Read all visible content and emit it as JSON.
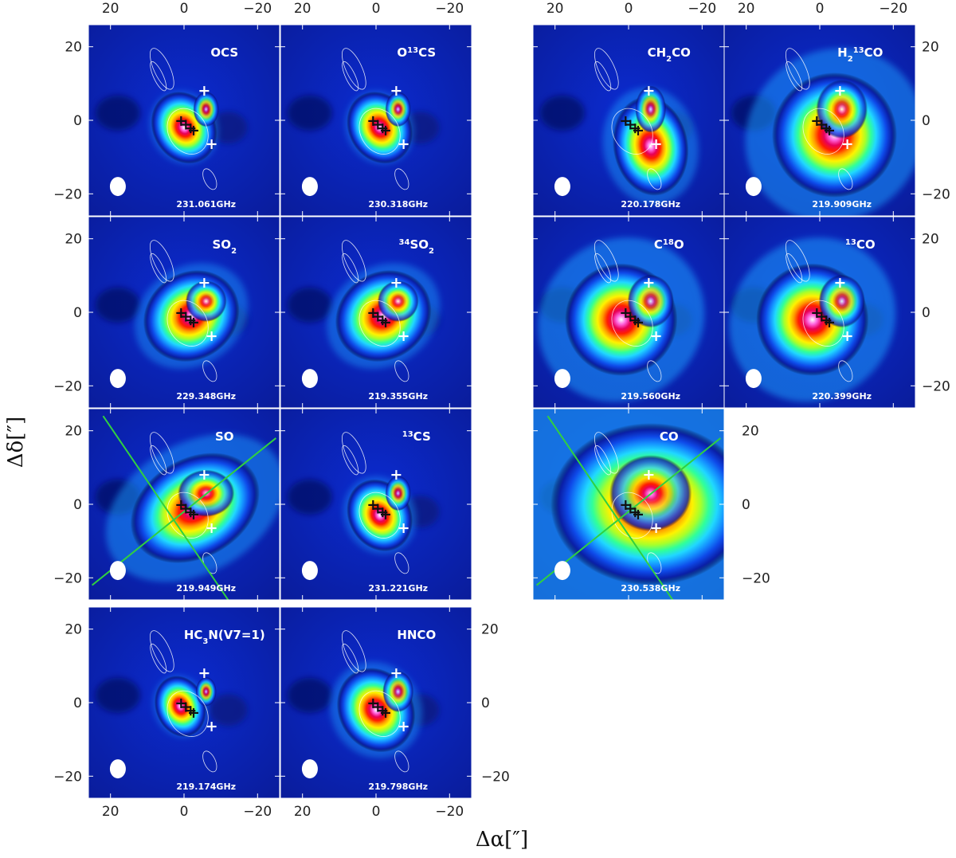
{
  "chart_data": {
    "type": "heatmap",
    "description_axes": {
      "xlabel": "Δα[″]",
      "ylabel": "Δδ[″]",
      "xlim": [
        26,
        -26
      ],
      "ylim": [
        -26,
        26
      ],
      "xticks": [
        20,
        0,
        -20
      ],
      "yticks": [
        20,
        0,
        -20
      ]
    },
    "xlabel": "Δα[″]",
    "ylabel": "Δδ[″]",
    "tick_labels": {
      "t20": "20",
      "t0": "0",
      "tm20": "−20"
    },
    "colormap": [
      "#000018",
      "#0a1fa8",
      "#0e49e8",
      "#1590ff",
      "#20d8ff",
      "#30ff9a",
      "#a8ff2a",
      "#fff200",
      "#ff9a00",
      "#ff1e00",
      "#e8005a",
      "#ff66e0",
      "#ffffff"
    ],
    "contour_color": "#ffffff",
    "guide_line_color": "#30d040",
    "white_crosses": [
      [
        -5.5,
        8
      ],
      [
        -7.5,
        -6.5
      ]
    ],
    "black_crosses": [
      [
        0.8,
        -0.2
      ],
      [
        -0.5,
        -1.2
      ],
      [
        -1.8,
        -2.2
      ],
      [
        -2.6,
        -2.8
      ]
    ],
    "panels": [
      {
        "molecule": "OCS",
        "mol_sup": "",
        "mol_sub": "",
        "mol_main": "OCS",
        "frequency": "231.061GHz",
        "peak": [
          0,
          -2
        ],
        "spread": [
          5,
          6
        ],
        "angle": -30,
        "extended": 0.1
      },
      {
        "molecule": "O13CS",
        "mol_pre": "O",
        "mol_sup": "13",
        "mol_main": "CS",
        "frequency": "230.318GHz",
        "peak": [
          -1,
          -2
        ],
        "spread": [
          5,
          6
        ],
        "angle": -30,
        "extended": 0.1
      },
      {
        "molecule": "CH2CO",
        "mol_pre": "CH",
        "mol_sub": "2",
        "mol_main": "CO",
        "frequency": "220.178GHz",
        "peak": [
          -6,
          -7
        ],
        "spread": [
          6,
          8
        ],
        "angle": -10,
        "extended": 0.25
      },
      {
        "molecule": "H213CO",
        "mol_pre": "H",
        "mol_sub": "2",
        "mol_sup": "13",
        "mol_main": "CO",
        "frequency": "219.909GHz",
        "peak": [
          -4,
          -4
        ],
        "spread": [
          10,
          10
        ],
        "angle": -35,
        "extended": 0.4
      },
      {
        "molecule": "SO2",
        "mol_pre": "SO",
        "mol_sub": "2",
        "mol_main": "",
        "frequency": "229.348GHz",
        "peak": [
          -2,
          -1
        ],
        "spread": [
          8,
          7
        ],
        "angle": -35,
        "extended": 0.2
      },
      {
        "molecule": "34SO2",
        "mol_sup_lead": "34",
        "mol_pre": "SO",
        "mol_sub": "2",
        "mol_main": "",
        "frequency": "219.355GHz",
        "peak": [
          -2,
          -1
        ],
        "spread": [
          8,
          7
        ],
        "angle": -35,
        "extended": 0.2
      },
      {
        "molecule": "C18O",
        "mol_pre": "C",
        "mol_sup": "18",
        "mol_main": "O",
        "frequency": "219.560GHz",
        "peak": [
          2,
          -2
        ],
        "spread": [
          9,
          9
        ],
        "angle": -40,
        "extended": 0.45
      },
      {
        "molecule": "13CO",
        "mol_sup_lead": "13",
        "mol_pre": "CO",
        "mol_main": "",
        "frequency": "220.399GHz",
        "peak": [
          2,
          -2
        ],
        "spread": [
          9,
          9
        ],
        "angle": -40,
        "extended": 0.45
      },
      {
        "molecule": "SO",
        "mol_pre": "SO",
        "mol_main": "",
        "frequency": "219.949GHz",
        "peak": [
          -3,
          -1
        ],
        "spread": [
          11,
          8
        ],
        "angle": -30,
        "extended": 0.35
      },
      {
        "molecule": "13CS",
        "mol_sup_lead": "13",
        "mol_pre": "CS",
        "mol_main": "",
        "frequency": "231.221GHz",
        "peak": [
          -1,
          -3
        ],
        "spread": [
          5,
          6
        ],
        "angle": -30,
        "extended": 0.15
      },
      {
        "molecule": "CO",
        "mol_pre": "CO",
        "mol_main": "",
        "frequency": "230.538GHz",
        "peak": [
          -6,
          0
        ],
        "spread": [
          16,
          13
        ],
        "angle": 0,
        "extended": 0.7
      },
      {
        "molecule": "HC3N(V7=1)",
        "mol_pre": "HC",
        "mol_sub": "3",
        "mol_main": "N(V7=1)",
        "frequency": "219.174GHz",
        "peak": [
          1,
          -1
        ],
        "spread": [
          4,
          5
        ],
        "angle": -20,
        "extended": 0.1
      },
      {
        "molecule": "HNCO",
        "mol_pre": "HNCO",
        "mol_main": "",
        "frequency": "219.798GHz",
        "peak": [
          0,
          -2
        ],
        "spread": [
          6,
          7
        ],
        "angle": -30,
        "extended": 0.2
      }
    ]
  }
}
